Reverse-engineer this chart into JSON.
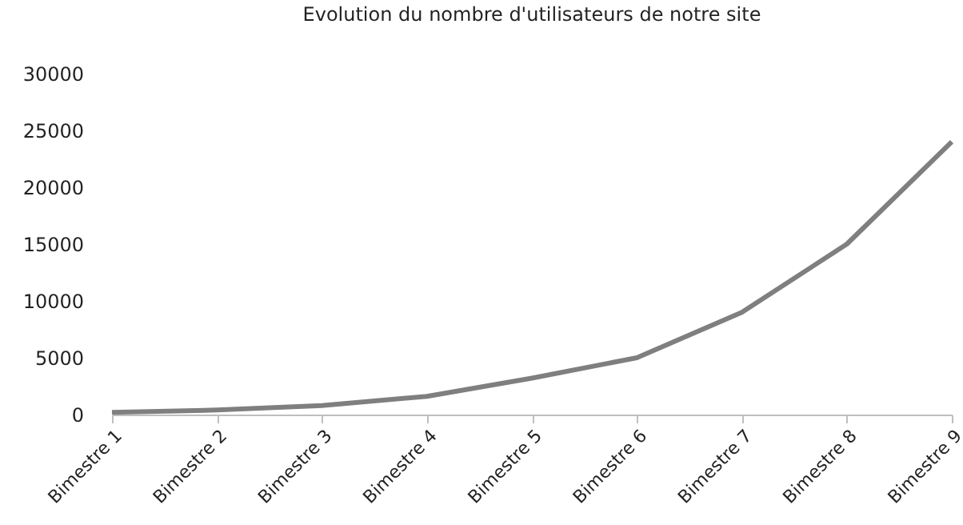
{
  "chart_data": {
    "type": "line",
    "title": "Evolution du nombre d'utilisateurs de notre site",
    "categories": [
      "Bimestre 1",
      "Bimestre 2",
      "Bimestre 3",
      "Bimestre 4",
      "Bimestre 5",
      "Bimestre 6",
      "Bimestre 7",
      "Bimestre 8",
      "Bimestre 9"
    ],
    "series": [
      {
        "color": "#7f7f7f",
        "values": [
          200,
          400,
          800,
          1600,
          3200,
          5000,
          9000,
          15000,
          24000
        ]
      }
    ],
    "ylim": [
      0,
      30000
    ],
    "yticks": [
      0,
      5000,
      10000,
      15000,
      20000,
      25000,
      30000
    ],
    "grid": false,
    "marker": "none",
    "line_style": "solid"
  }
}
